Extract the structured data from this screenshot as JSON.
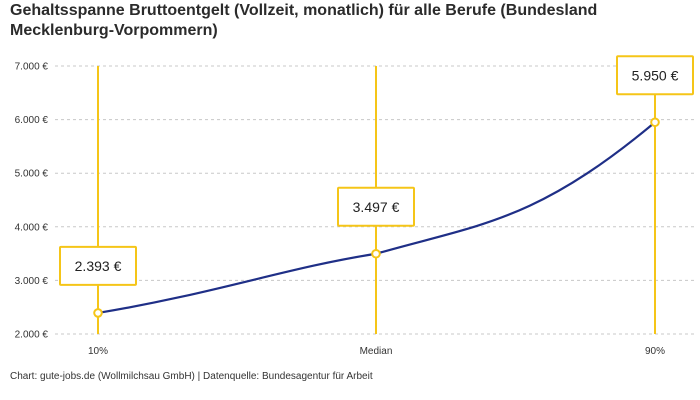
{
  "title": "Gehaltsspanne Bruttoentgelt (Vollzeit, monatlich) für alle Berufe (Bundesland Mecklenburg-Vorpommern)",
  "source": "Chart: gute-jobs.de (Wollmilchsau GmbH) | Datenquelle: Bundesagentur für Arbeit",
  "colors": {
    "line": "#1f2f87",
    "accent": "#f5c518",
    "grid": "#c8c8c8"
  },
  "chart_data": {
    "type": "line",
    "categories": [
      "10%",
      "Median",
      "90%"
    ],
    "values": [
      2393,
      3497,
      5950
    ],
    "value_labels": [
      "2.393 €",
      "3.497 €",
      "5.950 €"
    ],
    "ylim": [
      2000,
      7000
    ],
    "yticks": [
      2000,
      3000,
      4000,
      5000,
      6000,
      7000
    ],
    "ytick_labels": [
      "2.000 €",
      "3.000 €",
      "4.000 €",
      "5.000 €",
      "6.000 €",
      "7.000 €"
    ],
    "grid": true
  }
}
